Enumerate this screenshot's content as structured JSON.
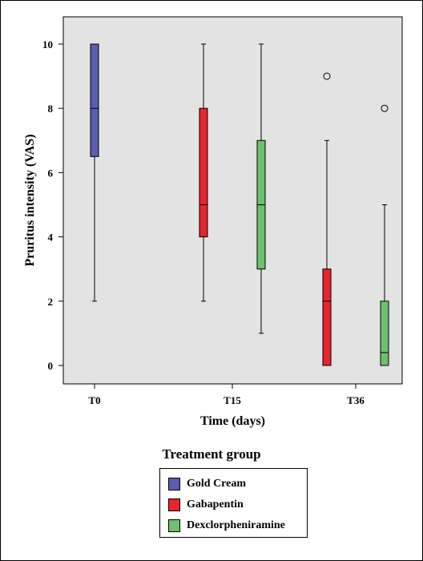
{
  "chart_data": {
    "type": "boxplot",
    "ylabel": "Pruritus intensity (VAS)",
    "xlabel": "Time (days)",
    "categories": [
      "T0",
      "T15",
      "T36"
    ],
    "ylim": [
      0,
      10
    ],
    "yticks": [
      0,
      2,
      4,
      6,
      8,
      10
    ],
    "grid": false,
    "legend": {
      "title": "Treatment group",
      "placement": "bottom",
      "entries": [
        "Gold Cream",
        "Gabapentin",
        "Dexclorpheniramine"
      ]
    },
    "series": [
      {
        "name": "Gold Cream",
        "color": "#5a5db0",
        "boxes": [
          {
            "category": "T0",
            "min": 2,
            "q1": 6.5,
            "median": 8,
            "q3": 10,
            "max": 10,
            "outliers": []
          }
        ]
      },
      {
        "name": "Gabapentin",
        "color": "#e8242f",
        "boxes": [
          {
            "category": "T15",
            "min": 2,
            "q1": 4,
            "median": 5,
            "q3": 8,
            "max": 10,
            "outliers": []
          },
          {
            "category": "T36",
            "min": 0,
            "q1": 0,
            "median": 2,
            "q3": 3,
            "max": 7,
            "outliers": [
              9
            ]
          }
        ]
      },
      {
        "name": "Dexclorpheniramine",
        "color": "#6cc26c",
        "boxes": [
          {
            "category": "T15",
            "min": 1,
            "q1": 3,
            "median": 5,
            "q3": 7,
            "max": 10,
            "outliers": []
          },
          {
            "category": "T36",
            "min": 0,
            "q1": 0,
            "median": 0.4,
            "q3": 2,
            "max": 5,
            "outliers": [
              8
            ]
          }
        ]
      }
    ],
    "colors": {
      "plot_background": "#e3e3e3"
    }
  }
}
